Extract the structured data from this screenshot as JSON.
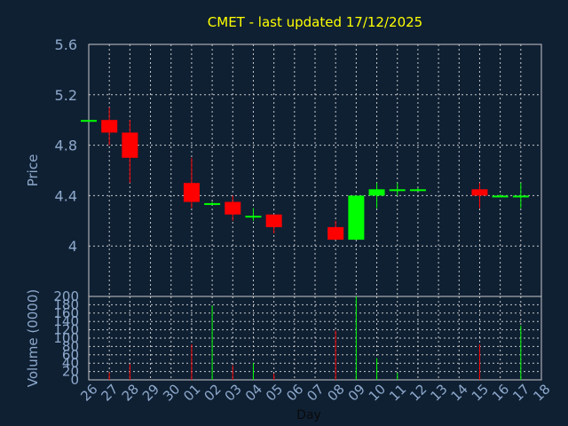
{
  "chart_data": {
    "type": "candlestick",
    "title": "CMET - last updated 17/12/2025",
    "xlabel": "Day",
    "x": [
      "26",
      "27",
      "28",
      "29",
      "30",
      "01",
      "02",
      "03",
      "04",
      "05",
      "06",
      "07",
      "08",
      "09",
      "10",
      "11",
      "12",
      "13",
      "14",
      "15",
      "16",
      "17",
      "18"
    ],
    "price_axis": {
      "label": "Price",
      "ylim": [
        3.6,
        5.6
      ],
      "ticks": [
        "4",
        "4.4",
        "4.8",
        "5.2",
        "5.6"
      ]
    },
    "volume_axis": {
      "label": "Volume (0000)",
      "ylim": [
        0,
        200
      ],
      "ticks": [
        "0",
        "20",
        "40",
        "60",
        "80",
        "100",
        "120",
        "140",
        "160",
        "180",
        "200"
      ]
    },
    "grid": true,
    "colors": {
      "up": "#00ff00",
      "down": "#ff0000",
      "title": "#ffff00",
      "axis": "#8ea9cc",
      "background": "#0f2033"
    },
    "candles": [
      {
        "day": "26",
        "open": 5.0,
        "high": 5.0,
        "low": 5.0,
        "close": 5.0,
        "volume": 0
      },
      {
        "day": "27",
        "open": 5.0,
        "high": 5.1,
        "low": 4.8,
        "close": 4.9,
        "volume": 18
      },
      {
        "day": "28",
        "open": 4.9,
        "high": 5.0,
        "low": 4.5,
        "close": 4.7,
        "volume": 38
      },
      {
        "day": "01",
        "open": 4.5,
        "high": 4.7,
        "low": 4.3,
        "close": 4.35,
        "volume": 85
      },
      {
        "day": "02",
        "open": 4.34,
        "high": 4.35,
        "low": 4.33,
        "close": 4.34,
        "volume": 178
      },
      {
        "day": "03",
        "open": 4.35,
        "high": 4.4,
        "low": 4.2,
        "close": 4.25,
        "volume": 35
      },
      {
        "day": "04",
        "open": 4.24,
        "high": 4.3,
        "low": 4.2,
        "close": 4.24,
        "volume": 40
      },
      {
        "day": "05",
        "open": 4.25,
        "high": 4.25,
        "low": 4.1,
        "close": 4.15,
        "volume": 15
      },
      {
        "day": "08",
        "open": 4.15,
        "high": 4.2,
        "low": 4.05,
        "close": 4.05,
        "volume": 118
      },
      {
        "day": "09",
        "open": 4.05,
        "high": 4.4,
        "low": 4.05,
        "close": 4.4,
        "volume": 200
      },
      {
        "day": "10",
        "open": 4.4,
        "high": 4.5,
        "low": 4.3,
        "close": 4.45,
        "volume": 52
      },
      {
        "day": "11",
        "open": 4.45,
        "high": 4.5,
        "low": 4.4,
        "close": 4.45,
        "volume": 17
      },
      {
        "day": "12",
        "open": 4.45,
        "high": 4.46,
        "low": 4.44,
        "close": 4.45,
        "volume": 0
      },
      {
        "day": "15",
        "open": 4.45,
        "high": 4.5,
        "low": 4.3,
        "close": 4.4,
        "volume": 85
      },
      {
        "day": "16",
        "open": 4.4,
        "high": 4.41,
        "low": 4.39,
        "close": 4.4,
        "volume": 0
      },
      {
        "day": "17",
        "open": 4.4,
        "high": 4.5,
        "low": 4.3,
        "close": 4.4,
        "volume": 130
      }
    ]
  }
}
